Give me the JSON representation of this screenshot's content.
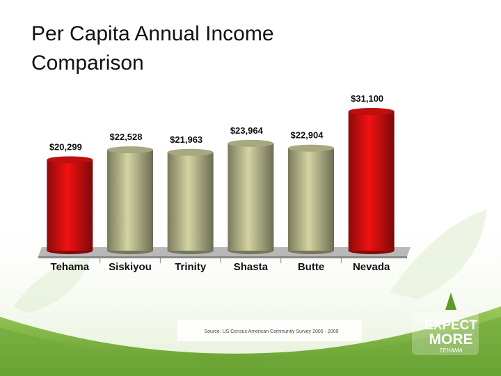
{
  "chart_data": {
    "type": "bar",
    "title": "Per Capita Annual Income Comparison",
    "title_lines": [
      "Per Capita Annual Income",
      "Comparison"
    ],
    "categories": [
      "Tehama",
      "Siskiyou",
      "Trinity",
      "Shasta",
      "Butte",
      "Nevada"
    ],
    "values": [
      20299,
      22528,
      21963,
      23964,
      22904,
      31100
    ],
    "value_labels": [
      "$20,299",
      "$22,528",
      "$21,963",
      "$23,964",
      "$22,904",
      "$31,100"
    ],
    "colors": [
      "#e01010",
      "#c4c496",
      "#c4c496",
      "#c4c496",
      "#c4c496",
      "#e01010"
    ],
    "source": "Source: US Census American Community Survey 2005 - 2009"
  },
  "logo": {
    "line1": "EXPECT",
    "line2": "MORE",
    "line3": "TEHAMA"
  }
}
